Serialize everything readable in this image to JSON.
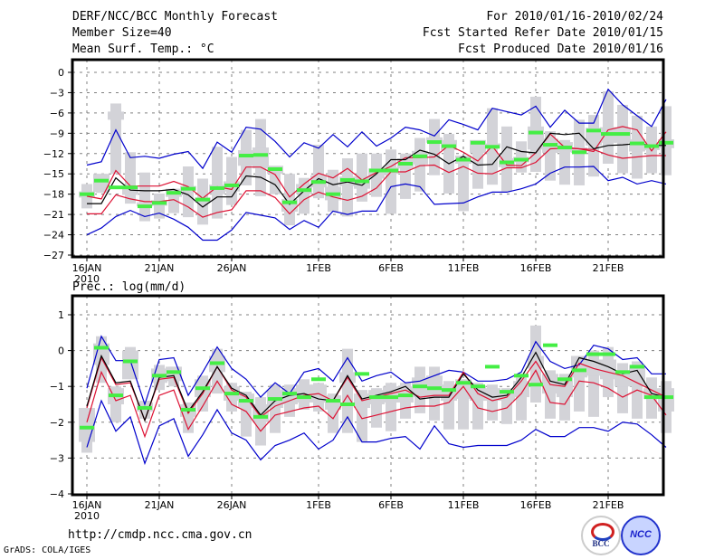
{
  "header": {
    "title": "DERF/NCC/BCC Monthly Forecast",
    "member_size": "Member Size=40",
    "variable": "Mean Surf. Temp.: °C",
    "period": "For 2010/01/16-2010/02/24",
    "started": "Fcst Started Refer Date 2010/01/15",
    "produced": "Fcst Produced Date 2010/01/16"
  },
  "footer": {
    "url": "http://cmdp.ncc.cma.gov.cn",
    "credit": "GrADS: COLA/IGES",
    "logos": [
      "BCC",
      "NCC"
    ]
  },
  "colors": {
    "max_min": "#0000cc",
    "quartile": "#dd1133",
    "median": "#000000",
    "box": "#d3d3d8",
    "observed": "#44ee44",
    "grid": "#808080"
  },
  "chart_data": [
    {
      "type": "line",
      "title": "Mean Surf. Temp.: °C",
      "xlabel": "",
      "ylabel": "",
      "x_tick_labels": [
        "16JAN",
        "21JAN",
        "26JAN",
        "1FEB",
        "6FEB",
        "11FEB",
        "16FEB",
        "21FEB"
      ],
      "x_tick_sub": "2010",
      "y_ticks": [
        0,
        -3,
        -6,
        -9,
        -12,
        -15,
        -18,
        -21,
        -24,
        -27
      ],
      "ylim": [
        -28,
        2
      ],
      "days": 40,
      "grid": true,
      "series": [
        {
          "name": "max",
          "values": [
            -13.7,
            -13.2,
            -8.5,
            -12.6,
            -12.4,
            -12.7,
            -12.1,
            -11.7,
            -14.2,
            -10.3,
            -11.8,
            -8.1,
            -8.4,
            -10.2,
            -12.5,
            -10.4,
            -11.2,
            -9.2,
            -11.0,
            -8.8,
            -10.9,
            -9.7,
            -8.1,
            -8.5,
            -9.4,
            -7.0,
            -7.7,
            -8.5,
            -5.3,
            -5.8,
            -6.3,
            -5.0,
            -8.1,
            -5.6,
            -7.5,
            -7.5,
            -2.5,
            -4.8,
            -6.4,
            -8.0,
            -4.0
          ]
        },
        {
          "name": "q75",
          "values": [
            -18.3,
            -18.7,
            -14.5,
            -16.8,
            -16.8,
            -16.8,
            -16.1,
            -16.9,
            -18.6,
            -16.9,
            -17.3,
            -14.0,
            -14.0,
            -15.1,
            -18.4,
            -16.5,
            -14.9,
            -15.6,
            -14.2,
            -15.9,
            -14.8,
            -13.9,
            -12.6,
            -12.6,
            -12.5,
            -10.8,
            -11.8,
            -13.1,
            -10.9,
            -13.7,
            -13.8,
            -11.9,
            -9.1,
            -11.1,
            -11.3,
            -11.7,
            -8.5,
            -8.0,
            -8.5,
            -11.6,
            -8.8
          ]
        },
        {
          "name": "median",
          "values": [
            -19.4,
            -19.4,
            -15.6,
            -17.4,
            -17.5,
            -17.5,
            -17.3,
            -18.1,
            -19.9,
            -18.4,
            -18.4,
            -15.3,
            -15.5,
            -16.6,
            -19.5,
            -17.5,
            -15.7,
            -16.6,
            -16.2,
            -16.7,
            -15.0,
            -12.9,
            -12.9,
            -11.5,
            -12.1,
            -13.5,
            -12.4,
            -13.7,
            -13.6,
            -11.0,
            -11.7,
            -11.9,
            -9.0,
            -9.2,
            -9.0,
            -11.3,
            -10.8,
            -10.7,
            -10.5,
            -10.8,
            -10.8
          ]
        },
        {
          "name": "q25",
          "values": [
            -20.9,
            -20.9,
            -18.1,
            -18.7,
            -19.1,
            -19.1,
            -18.8,
            -19.9,
            -21.4,
            -20.7,
            -20.3,
            -17.5,
            -17.5,
            -18.5,
            -20.9,
            -18.8,
            -17.7,
            -18.4,
            -18.9,
            -18.3,
            -17.1,
            -14.7,
            -14.7,
            -13.8,
            -13.7,
            -14.8,
            -13.9,
            -14.9,
            -15.0,
            -14.1,
            -14.1,
            -13.3,
            -11.3,
            -11.2,
            -11.3,
            -11.4,
            -12.2,
            -12.7,
            -12.5,
            -12.3,
            -12.3
          ]
        },
        {
          "name": "min",
          "values": [
            -24.0,
            -23.0,
            -21.3,
            -20.4,
            -21.3,
            -20.8,
            -21.7,
            -22.9,
            -24.8,
            -24.8,
            -23.3,
            -20.7,
            -21.1,
            -21.5,
            -23.2,
            -21.9,
            -22.9,
            -20.5,
            -21.0,
            -20.5,
            -20.5,
            -16.9,
            -16.5,
            -16.9,
            -19.5,
            -19.4,
            -19.3,
            -18.4,
            -17.7,
            -17.7,
            -17.2,
            -16.5,
            -14.9,
            -14.0,
            -14.0,
            -13.9,
            -16.0,
            -15.5,
            -16.5,
            -16.0,
            -16.5
          ]
        },
        {
          "name": "observed",
          "values": [
            -18.0,
            -16.0,
            -17.0,
            -17.0,
            -19.8,
            -19.3,
            -17.8,
            -17.2,
            -18.8,
            -17.1,
            -16.7,
            -12.3,
            -12.2,
            -14.3,
            -19.2,
            -17.4,
            -16.2,
            -18.0,
            -15.9,
            -16.1,
            -14.5,
            -14.5,
            -13.5,
            -12.4,
            -10.3,
            -10.9,
            -12.9,
            -10.4,
            -11.0,
            -13.3,
            -12.9,
            -8.9,
            -10.7,
            -11.1,
            -11.8,
            -8.6,
            -9.1,
            -9.1,
            -10.5,
            -10.9,
            -10.4
          ]
        },
        {
          "name": "box_outer",
          "low": [
            -20.1,
            -17.8,
            -15.0,
            -19.4,
            -22.0,
            -21.6,
            -20.8,
            -21.4,
            -22.5,
            -21.6,
            -19.6,
            -16.7,
            -18.3,
            -18.0,
            -22.6,
            -20.9,
            -18.6,
            -20.6,
            -21.3,
            -19.1,
            -18.4,
            -20.9,
            -18.7,
            -17.6,
            -15.2,
            -17.9,
            -20.5,
            -17.2,
            -16.6,
            -17.6,
            -14.8,
            -14.7,
            -16.0,
            -16.6,
            -16.7,
            -15.4,
            -13.5,
            -14.9,
            -15.7,
            -14.9,
            -15.2
          ],
          "high": [
            -16.5,
            -15.0,
            -4.6,
            -11.8,
            -14.8,
            -17.9,
            -17.2,
            -13.9,
            -15.7,
            -11.0,
            -12.5,
            -8.5,
            -6.9,
            -14.0,
            -15.0,
            -15.6,
            -10.7,
            -14.4,
            -12.7,
            -12.0,
            -12.0,
            -11.4,
            -12.0,
            -9.7,
            -6.9,
            -9.1,
            -13.0,
            -10.6,
            -5.3,
            -8.0,
            -10.2,
            -3.6,
            -8.7,
            -10.0,
            -7.0,
            -6.3,
            -2.8,
            -4.8,
            -6.4,
            -8.0,
            -5.0
          ]
        },
        {
          "name": "box_inner",
          "low": [
            -18.5,
            -17.7,
            -7.0,
            -18.1,
            -19.8,
            -19.7,
            -18.4,
            -17.5,
            -19.2,
            -18.0,
            -17.6,
            -13.8,
            -14.2,
            -15.0,
            -20.6,
            -18.0,
            -17.0,
            -18.9,
            -16.8,
            -17.2,
            -15.7,
            -15.0,
            -14.2,
            -13.6,
            -10.4,
            -11.5,
            -13.5,
            -11.9,
            -11.2,
            -14.0,
            -13.3,
            -11.4,
            -11.9,
            -11.8,
            -11.9,
            -10.8,
            -10.4,
            -10.4,
            -11.7,
            -11.5,
            -11.2
          ],
          "high": [
            -17.6,
            -15.0,
            -5.8,
            -16.8,
            -19.2,
            -18.9,
            -17.2,
            -16.8,
            -18.5,
            -16.6,
            -16.1,
            -11.5,
            -11.1,
            -13.8,
            -18.7,
            -16.5,
            -15.2,
            -16.9,
            -15.4,
            -15.4,
            -14.2,
            -14.0,
            -12.7,
            -11.6,
            -9.6,
            -10.0,
            -12.3,
            -10.0,
            -10.5,
            -12.7,
            -12.5,
            -8.0,
            -9.8,
            -10.3,
            -11.1,
            -8.2,
            -8.1,
            -8.2,
            -9.9,
            -10.5,
            -9.9
          ]
        }
      ]
    },
    {
      "type": "line",
      "title": "Prec.: log(mm/d)",
      "xlabel": "",
      "ylabel": "",
      "x_tick_labels": [
        "16JAN",
        "21JAN",
        "26JAN",
        "1FEB",
        "6FEB",
        "11FEB",
        "16FEB",
        "21FEB"
      ],
      "x_tick_sub": "2010",
      "y_ticks": [
        1,
        0,
        -1,
        -2,
        -3,
        -4
      ],
      "ylim": [
        -4,
        1.4
      ],
      "days": 40,
      "grid": true,
      "series": [
        {
          "name": "max",
          "values": [
            -1.05,
            0.4,
            -0.28,
            -0.28,
            -1.5,
            -0.25,
            -0.2,
            -1.25,
            -0.6,
            0.1,
            -0.5,
            -0.8,
            -1.3,
            -0.9,
            -1.2,
            -0.6,
            -0.5,
            -0.85,
            -0.2,
            -0.85,
            -0.7,
            -0.6,
            -0.9,
            -0.85,
            -0.7,
            -0.55,
            -0.6,
            -0.85,
            -0.85,
            -0.8,
            -0.6,
            0.25,
            -0.3,
            -0.5,
            -0.4,
            0.15,
            0.05,
            -0.25,
            -0.2,
            -0.65,
            -0.65
          ]
        },
        {
          "name": "q75",
          "values": [
            -1.6,
            -0.2,
            -0.95,
            -0.9,
            -1.95,
            -0.8,
            -0.75,
            -1.75,
            -1.2,
            -0.45,
            -1.1,
            -1.3,
            -1.85,
            -1.55,
            -1.4,
            -1.25,
            -1.2,
            -1.4,
            -0.75,
            -1.4,
            -1.3,
            -1.2,
            -1.1,
            -1.3,
            -1.25,
            -1.25,
            -0.6,
            -1.2,
            -1.4,
            -1.3,
            -0.85,
            -0.3,
            -0.95,
            -1.0,
            -0.35,
            -0.5,
            -0.6,
            -0.7,
            -0.9,
            -1.1,
            -1.3
          ]
        },
        {
          "name": "median",
          "values": [
            -1.55,
            -0.15,
            -0.9,
            -0.85,
            -1.95,
            -0.75,
            -0.7,
            -1.7,
            -1.15,
            -0.45,
            -1.05,
            -1.25,
            -1.8,
            -1.4,
            -1.25,
            -1.2,
            -1.35,
            -1.4,
            -0.7,
            -1.35,
            -1.25,
            -1.15,
            -1.0,
            -1.35,
            -1.3,
            -1.3,
            -0.65,
            -1.1,
            -1.3,
            -1.25,
            -0.75,
            -0.05,
            -0.85,
            -0.95,
            -0.2,
            -0.3,
            -0.45,
            -0.65,
            -0.55,
            -1.2,
            -1.3
          ]
        },
        {
          "name": "q25",
          "values": [
            -2.0,
            -0.6,
            -1.4,
            -1.25,
            -2.4,
            -1.25,
            -1.1,
            -2.2,
            -1.55,
            -0.85,
            -1.5,
            -1.7,
            -2.25,
            -1.8,
            -1.7,
            -1.6,
            -1.55,
            -1.9,
            -1.25,
            -1.9,
            -1.8,
            -1.7,
            -1.6,
            -1.55,
            -1.55,
            -1.45,
            -1.0,
            -1.6,
            -1.7,
            -1.6,
            -1.2,
            -0.55,
            -1.45,
            -1.5,
            -0.85,
            -0.9,
            -1.05,
            -1.3,
            -1.1,
            -1.25,
            -1.8
          ]
        },
        {
          "name": "min",
          "values": [
            -2.7,
            -1.4,
            -2.25,
            -1.85,
            -3.15,
            -2.1,
            -1.9,
            -2.95,
            -2.35,
            -1.65,
            -2.3,
            -2.5,
            -3.05,
            -2.65,
            -2.5,
            -2.3,
            -2.75,
            -2.5,
            -1.85,
            -2.55,
            -2.55,
            -2.45,
            -2.4,
            -2.75,
            -2.1,
            -2.6,
            -2.7,
            -2.65,
            -2.65,
            -2.65,
            -2.5,
            -2.2,
            -2.4,
            -2.4,
            -2.15,
            -2.15,
            -2.25,
            -2.0,
            -2.05,
            -2.35,
            -2.7
          ]
        },
        {
          "name": "observed",
          "values": [
            -2.15,
            0.08,
            -1.25,
            -0.3,
            -1.6,
            -0.7,
            -0.6,
            -1.65,
            -1.05,
            -0.35,
            -1.2,
            -1.4,
            -1.85,
            -1.35,
            -1.2,
            -1.3,
            -0.8,
            -1.4,
            -1.5,
            -0.65,
            -1.3,
            -1.3,
            -1.25,
            -1.0,
            -1.05,
            -1.1,
            -0.9,
            -1.0,
            -0.45,
            -1.15,
            -0.7,
            -0.95,
            0.15,
            -0.8,
            -0.55,
            -0.1,
            -0.1,
            -0.6,
            -0.45,
            -1.3,
            -1.3
          ]
        },
        {
          "name": "box_outer",
          "low": [
            -2.85,
            -0.9,
            -2.0,
            -0.6,
            -1.9,
            -1.1,
            -1.0,
            -2.3,
            -1.7,
            -1.2,
            -1.7,
            -2.4,
            -2.65,
            -2.3,
            -1.85,
            -1.65,
            -1.7,
            -2.3,
            -2.3,
            -2.55,
            -2.15,
            -2.25,
            -1.9,
            -1.75,
            -1.95,
            -2.2,
            -2.2,
            -2.2,
            -1.95,
            -2.05,
            -1.95,
            -1.45,
            -1.9,
            -1.95,
            -1.7,
            -1.85,
            -1.3,
            -1.75,
            -1.9,
            -1.9,
            -2.3
          ],
          "high": [
            -1.6,
            0.4,
            -1.0,
            0.1,
            -1.4,
            -0.4,
            -0.45,
            -1.45,
            -0.7,
            0.05,
            -0.9,
            -1.15,
            -1.3,
            -0.95,
            -0.95,
            -0.8,
            -0.9,
            -1.2,
            0.05,
            -1.1,
            -1.05,
            -0.9,
            -0.9,
            -0.45,
            -0.45,
            -0.85,
            -0.85,
            -0.9,
            -0.95,
            -1.05,
            -0.75,
            0.7,
            -0.55,
            -0.65,
            -0.25,
            0.0,
            0.1,
            -0.35,
            -0.3,
            -0.75,
            -0.85
          ]
        },
        {
          "name": "box_inner",
          "low": [
            -2.55,
            -0.4,
            -1.5,
            -0.8,
            -1.7,
            -0.9,
            -0.85,
            -1.85,
            -1.3,
            -0.6,
            -1.4,
            -1.6,
            -2.0,
            -1.6,
            -1.5,
            -1.45,
            -1.45,
            -1.65,
            -0.9,
            -1.6,
            -1.5,
            -1.45,
            -1.45,
            -1.3,
            -1.3,
            -1.4,
            -1.35,
            -1.4,
            -1.4,
            -1.4,
            -1.3,
            -0.5,
            -1.2,
            -1.3,
            -0.75,
            -0.7,
            -0.8,
            -1.0,
            -1.0,
            -1.35,
            -1.7
          ],
          "high": [
            -1.6,
            0.2,
            -1.05,
            0.0,
            -1.45,
            -0.5,
            -0.45,
            -1.5,
            -0.8,
            -0.15,
            -1.0,
            -1.2,
            -1.5,
            -1.1,
            -1.05,
            -0.95,
            -0.95,
            -1.25,
            -0.6,
            -1.2,
            -1.1,
            -1.0,
            -1.0,
            -0.75,
            -0.7,
            -0.95,
            -0.8,
            -1.0,
            -1.05,
            -1.1,
            -0.85,
            -0.15,
            -0.65,
            -0.75,
            -0.15,
            -0.25,
            -0.25,
            -0.55,
            -0.4,
            -1.05,
            -1.05
          ]
        }
      ]
    }
  ]
}
